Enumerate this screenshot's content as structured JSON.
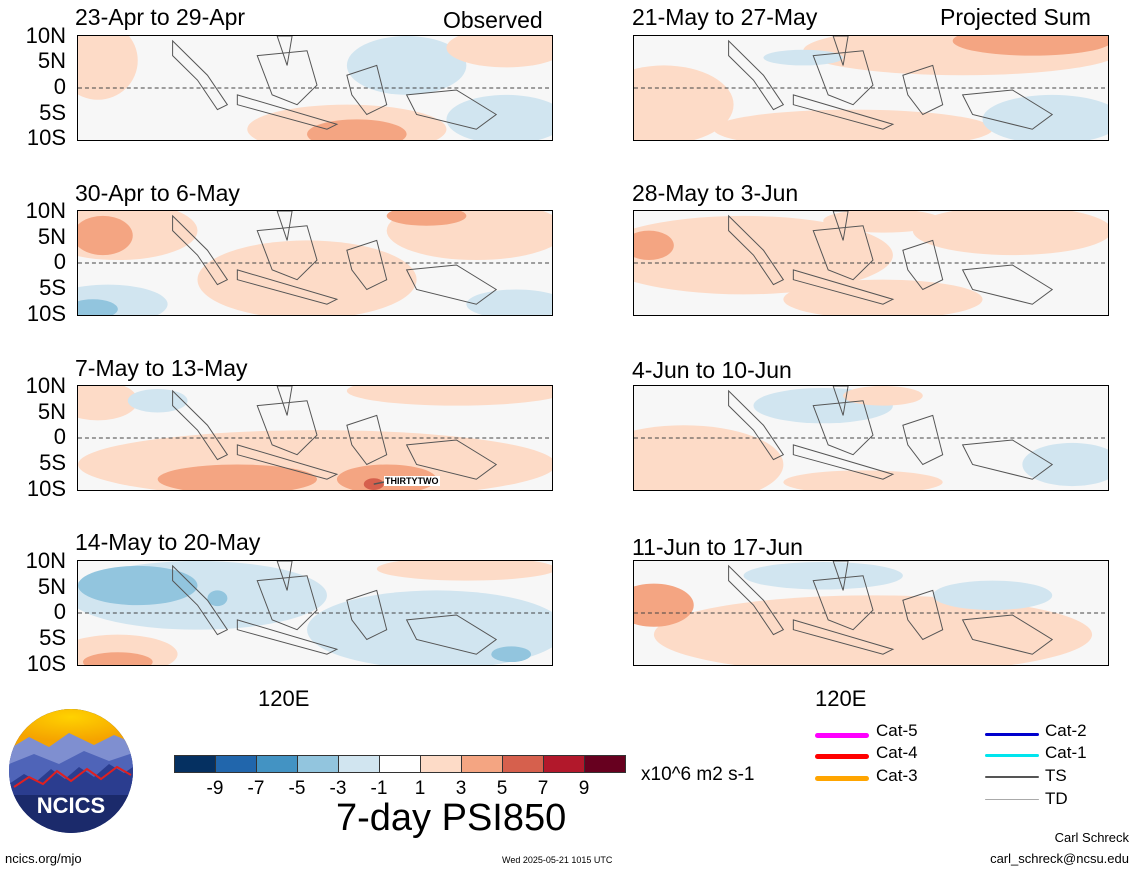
{
  "panels": [
    {
      "title": "23-Apr to 29-Apr",
      "tag": "Observed"
    },
    {
      "title": "30-Apr to 6-May",
      "tag": ""
    },
    {
      "title": "7-May to 13-May",
      "tag": "",
      "storm_label": "THIRTYTWO"
    },
    {
      "title": "14-May to 20-May",
      "tag": ""
    },
    {
      "title": "21-May to 27-May",
      "tag": "Projected Sum"
    },
    {
      "title": "28-May to 3-Jun",
      "tag": ""
    },
    {
      "title": "4-Jun to 10-Jun",
      "tag": ""
    },
    {
      "title": "11-Jun to 17-Jun",
      "tag": ""
    }
  ],
  "lat_labels": [
    "10N",
    "5N",
    "0",
    "5S",
    "10S"
  ],
  "lon_label": "120E",
  "colorbar": {
    "colors": [
      "#053061",
      "#2166ac",
      "#4393c3",
      "#92c5de",
      "#d1e5f0",
      "#ffffff",
      "#fddbc7",
      "#f4a582",
      "#d6604d",
      "#b2182b",
      "#67001f"
    ],
    "tick_labels": [
      "-9",
      "-7",
      "-5",
      "-3",
      "-1",
      "1",
      "3",
      "5",
      "7",
      "9"
    ],
    "units": "x10^6 m2 s-1"
  },
  "title": "7-day PSI850",
  "logo_text": "NCICS",
  "website": "ncics.org/mjo",
  "timestamp": "Wed 2025-05-21 1015 UTC",
  "author": "Carl Schreck",
  "email": "carl_schreck@ncsu.edu",
  "legend": [
    {
      "label": "Cat-5",
      "color": "#ff00ff"
    },
    {
      "label": "Cat-4",
      "color": "#ff0000"
    },
    {
      "label": "Cat-3",
      "color": "#ffa500"
    },
    {
      "label": "Cat-2",
      "color": "#0000cd"
    },
    {
      "label": "Cat-1",
      "color": "#00e5ee"
    },
    {
      "label": "TS",
      "color": "#555555"
    },
    {
      "label": "TD",
      "color": "#aaaaaa"
    }
  ]
}
